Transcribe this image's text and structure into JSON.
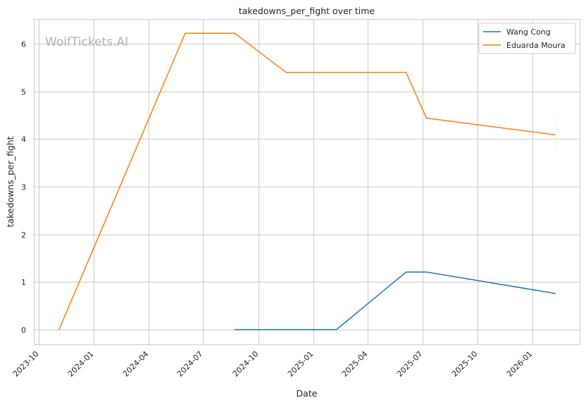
{
  "chart_data": {
    "type": "line",
    "title": "takedowns_per_fight over time",
    "xlabel": "Date",
    "ylabel": "takedowns_per_fight",
    "watermark": "WolfTickets.AI",
    "x_ticks": [
      "2023-10",
      "2024-01",
      "2024-04",
      "2024-07",
      "2024-10",
      "2025-01",
      "2025-04",
      "2025-07",
      "2025-10",
      "2026-01"
    ],
    "y_ticks": [
      0,
      1,
      2,
      3,
      4,
      5,
      6
    ],
    "xlim": [
      "2023-09-23",
      "2026-03-20"
    ],
    "ylim": [
      -0.31,
      6.52
    ],
    "grid": true,
    "legend": "top-right",
    "series": [
      {
        "name": "Wang Cong",
        "color": "#1f77b4",
        "points": [
          {
            "x": "2024-08-23",
            "y": 0.0
          },
          {
            "x": "2025-02-08",
            "y": 0.0
          },
          {
            "x": "2025-06-04",
            "y": 1.21
          },
          {
            "x": "2025-07-08",
            "y": 1.21
          },
          {
            "x": "2026-02-07",
            "y": 0.76
          }
        ]
      },
      {
        "name": "Eduarda Moura",
        "color": "#ff7f0e",
        "points": [
          {
            "x": "2023-11-04",
            "y": 0.0
          },
          {
            "x": "2024-06-01",
            "y": 6.22
          },
          {
            "x": "2024-08-23",
            "y": 6.22
          },
          {
            "x": "2024-11-16",
            "y": 5.4
          },
          {
            "x": "2025-06-04",
            "y": 5.4
          },
          {
            "x": "2025-07-08",
            "y": 4.44
          },
          {
            "x": "2026-02-07",
            "y": 4.09
          }
        ]
      }
    ]
  }
}
